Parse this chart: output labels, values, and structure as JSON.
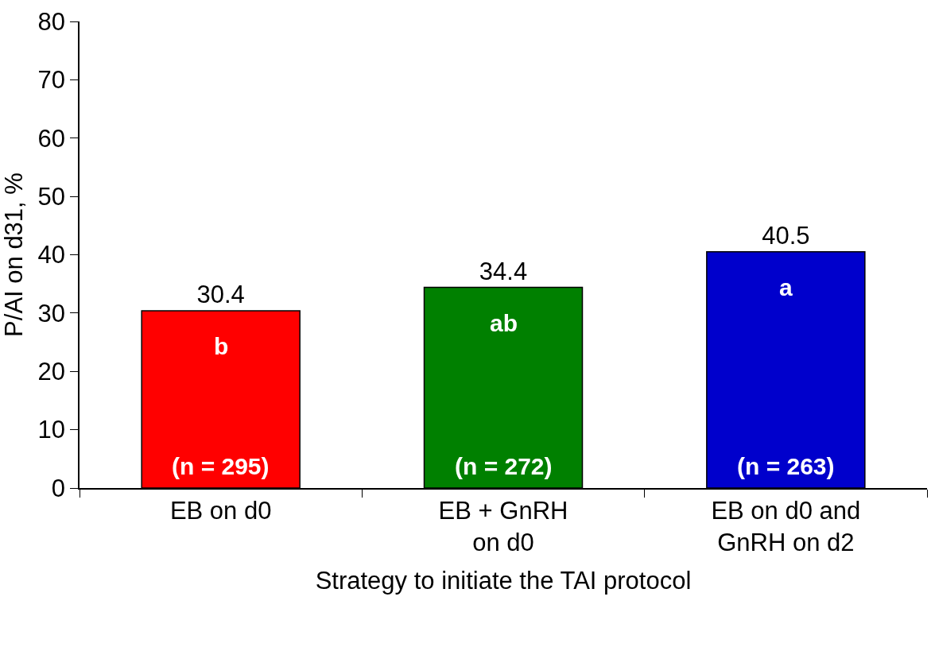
{
  "chart_data": {
    "type": "bar",
    "categories": [
      "EB on d0",
      "EB + GnRH on d0",
      "EB on d0 and GnRH on d2"
    ],
    "values": [
      30.4,
      34.4,
      40.5
    ],
    "colors": [
      "#ff0000",
      "#008000",
      "#0000cc"
    ],
    "xlabel": "Strategy to initiate the TAI protocol",
    "ylabel": "P/AI on d31, %",
    "ylim": [
      0,
      80
    ],
    "yticks": [
      0,
      10,
      20,
      30,
      40,
      50,
      60,
      70,
      80
    ],
    "data_labels": true,
    "legend": false,
    "annotations": [
      "b",
      "ab",
      "a",
      "(n = 295)",
      "(n = 272)",
      "(n = 263)"
    ]
  }
}
